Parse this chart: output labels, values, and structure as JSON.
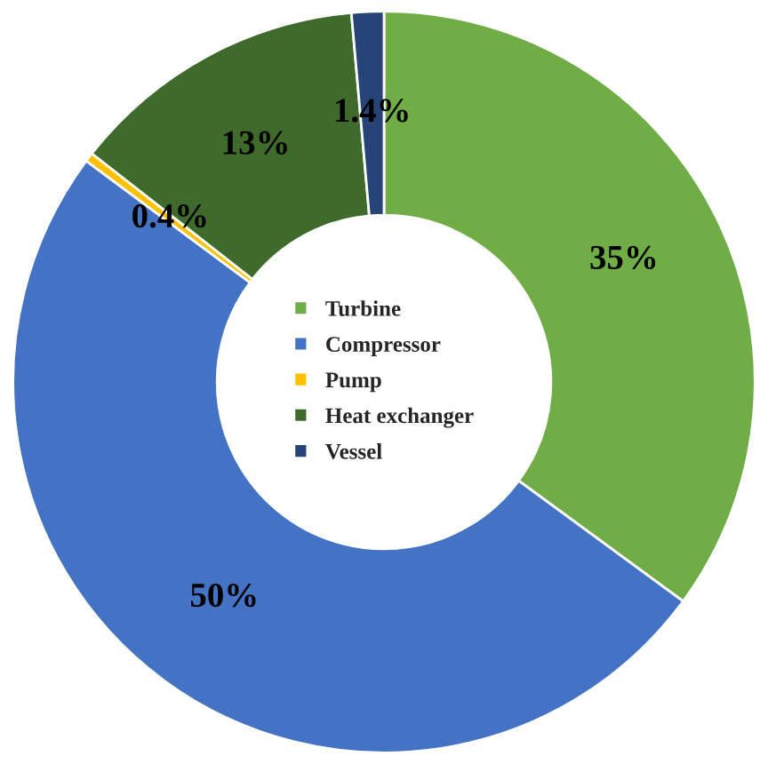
{
  "chart_data": {
    "type": "donut",
    "categories": [
      "Turbine",
      "Compressor",
      "Pump",
      "Heat exchanger",
      "Vessel"
    ],
    "values": [
      35,
      50,
      0.4,
      13,
      1.4
    ],
    "value_labels": [
      "35%",
      "50%",
      "0.4%",
      "13%",
      "1.4%"
    ],
    "colors": [
      "#70ad47",
      "#4472c4",
      "#ffc000",
      "#3e6b2b",
      "#264478"
    ],
    "legend": "center"
  }
}
